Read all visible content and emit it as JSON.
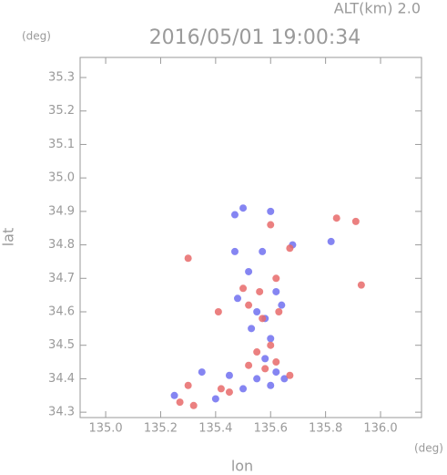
{
  "chart_data": {
    "type": "scatter",
    "title": "2016/05/01 19:00:34",
    "subtitle": "ALT(km) 2.0",
    "x_label": "lon",
    "y_label": "lat",
    "x_unit": "(deg)",
    "y_unit": "(deg)",
    "xlim": [
      134.907,
      136.149
    ],
    "ylim": [
      34.284,
      35.36
    ],
    "xticks": [
      {
        "value": 135,
        "label": "135.0"
      },
      135.2,
      135.4,
      135.6,
      135.8,
      {
        "value": 136,
        "label": "136.0"
      }
    ],
    "yticks": [
      34.3,
      34.4,
      34.5,
      34.6,
      34.7,
      34.8,
      34.9,
      {
        "value": 35,
        "label": "35.0"
      },
      35.1,
      35.2,
      35.3
    ],
    "series": [
      {
        "color": "#7070f0",
        "x": [
          135.5,
          135.47,
          135.6,
          135.57,
          135.68,
          135.52,
          135.48,
          135.55,
          135.58,
          135.62,
          135.53,
          135.6,
          135.58,
          135.62,
          135.45,
          135.55,
          135.5,
          135.35,
          135.65,
          135.6,
          135.82,
          135.25,
          135.4,
          135.47,
          135.64
        ],
        "y": [
          34.91,
          34.89,
          34.9,
          34.78,
          34.8,
          34.72,
          34.64,
          34.6,
          34.58,
          34.66,
          34.55,
          34.52,
          34.46,
          34.42,
          34.41,
          34.4,
          34.37,
          34.42,
          34.4,
          34.38,
          34.81,
          34.35,
          34.34,
          34.78,
          34.62
        ]
      },
      {
        "color": "#e86a6a",
        "x": [
          135.6,
          135.84,
          135.91,
          135.3,
          135.93,
          135.62,
          135.56,
          135.63,
          135.52,
          135.57,
          135.41,
          135.6,
          135.55,
          135.52,
          135.62,
          135.67,
          135.42,
          135.45,
          135.3,
          135.27,
          135.32,
          135.67,
          135.58,
          135.5
        ],
        "y": [
          34.86,
          34.88,
          34.87,
          34.76,
          34.68,
          34.7,
          34.66,
          34.6,
          34.62,
          34.58,
          34.6,
          34.5,
          34.48,
          34.44,
          34.45,
          34.41,
          34.37,
          34.36,
          34.38,
          34.33,
          34.32,
          34.79,
          34.43,
          34.67
        ]
      }
    ]
  }
}
